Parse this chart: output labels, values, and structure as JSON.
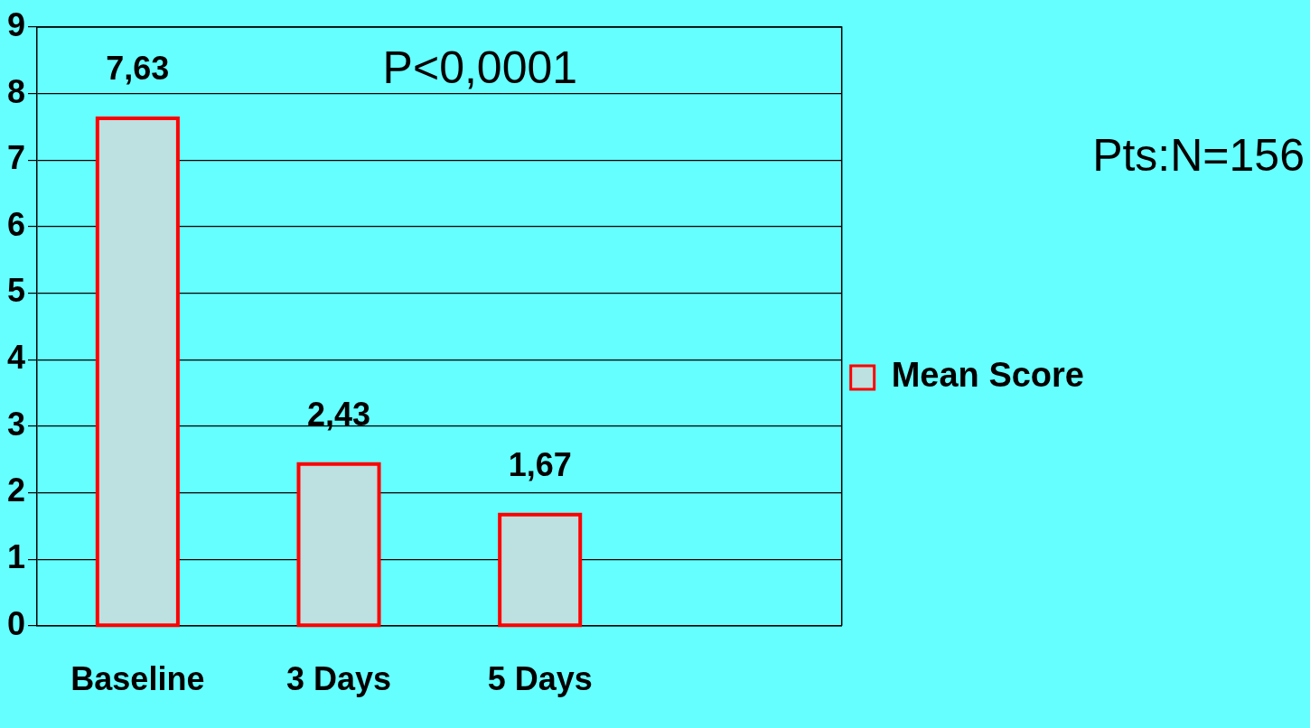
{
  "chart_data": {
    "type": "bar",
    "categories": [
      "Baseline",
      "3 Days",
      "5 Days",
      null
    ],
    "series": [
      {
        "name": "Mean Score",
        "color": "#bde0e0",
        "values": [
          7.63,
          2.43,
          1.67,
          null
        ],
        "value_labels": [
          "7,63",
          "2,43",
          "1,67",
          null
        ]
      }
    ],
    "ylim": [
      0,
      9
    ],
    "yticks": [
      0,
      1,
      2,
      3,
      4,
      5,
      6,
      7,
      8,
      9
    ],
    "grid": "y",
    "legend": "right",
    "annotations": [
      "P<0,0001",
      "Pts:N=156"
    ]
  }
}
